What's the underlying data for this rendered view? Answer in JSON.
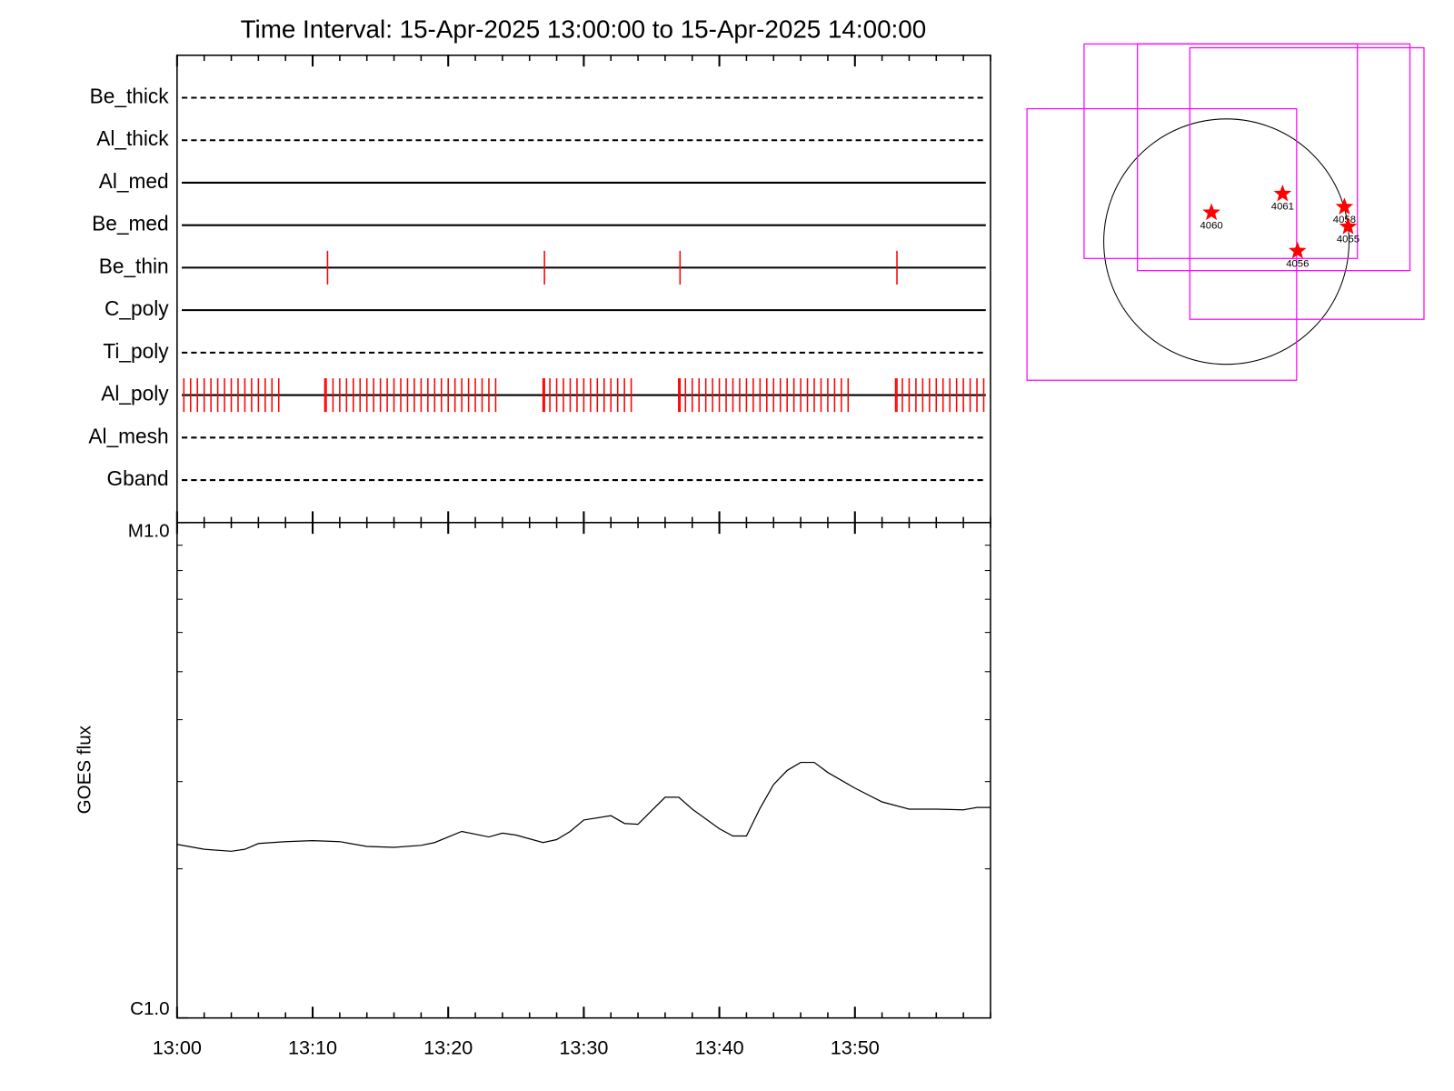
{
  "chart_data": [
    {
      "type": "timeline",
      "title": "Time Interval: 15-Apr-2025 13:00:00 to 15-Apr-2025 14:00:00",
      "xlim": [
        0,
        60
      ],
      "event_color": "#ff0000",
      "filters": [
        {
          "name": "Be_thick",
          "style": "dashed",
          "events": []
        },
        {
          "name": "Al_thick",
          "style": "dashed",
          "events": []
        },
        {
          "name": "Al_med",
          "style": "solid",
          "events": []
        },
        {
          "name": "Be_med",
          "style": "solid",
          "events": []
        },
        {
          "name": "Be_thin",
          "style": "solid",
          "events": [
            11.1,
            27.1,
            37.1,
            53.1
          ]
        },
        {
          "name": "C_poly",
          "style": "solid",
          "events": []
        },
        {
          "name": "Ti_poly",
          "style": "dashed",
          "events": []
        },
        {
          "name": "Al_poly",
          "style": "solid",
          "events": [
            0.5,
            1.0,
            1.5,
            2.0,
            2.5,
            3.0,
            3.5,
            4.0,
            4.5,
            5.0,
            5.5,
            6.0,
            6.5,
            7.0,
            7.5,
            10.9,
            11.0,
            11.5,
            12.0,
            12.5,
            13.0,
            13.5,
            14.0,
            14.5,
            15.0,
            15.5,
            16.0,
            16.5,
            17.0,
            17.5,
            18.0,
            18.5,
            19.0,
            19.5,
            20.0,
            20.5,
            21.0,
            21.5,
            22.0,
            22.5,
            23.0,
            23.5,
            27.0,
            27.1,
            27.5,
            28.0,
            28.5,
            29.0,
            29.5,
            30.0,
            30.5,
            31.0,
            31.5,
            32.0,
            32.5,
            33.0,
            33.5,
            37.0,
            37.1,
            37.5,
            38.0,
            38.5,
            39.0,
            39.5,
            40.0,
            40.5,
            41.0,
            41.5,
            42.0,
            42.5,
            43.0,
            43.5,
            44.0,
            44.5,
            45.0,
            45.5,
            46.0,
            46.5,
            47.0,
            47.5,
            48.0,
            48.5,
            49.0,
            49.5,
            53.0,
            53.1,
            53.5,
            54.0,
            54.5,
            55.0,
            55.5,
            56.0,
            56.5,
            57.0,
            57.5,
            58.0,
            58.5,
            59.0,
            59.5
          ]
        },
        {
          "name": "Al_mesh",
          "style": "dashed",
          "events": []
        },
        {
          "name": "Gband",
          "style": "dashed",
          "events": []
        }
      ]
    },
    {
      "type": "line",
      "y_label": "GOES flux",
      "log_y": true,
      "color": "#000000",
      "xlim": [
        0,
        60
      ],
      "xticks": [
        {
          "value": 0,
          "label": "13:00"
        },
        {
          "value": 10,
          "label": "13:10"
        },
        {
          "value": 20,
          "label": "13:20"
        },
        {
          "value": 30,
          "label": "13:30"
        },
        {
          "value": 40,
          "label": "13:40"
        },
        {
          "value": 50,
          "label": "13:50"
        }
      ],
      "ylim": [
        1e-06,
        1e-05
      ],
      "yticks": [
        {
          "value": 1e-06,
          "label": "C1.0"
        },
        {
          "value": 1e-05,
          "label": "M1.0"
        }
      ],
      "x": [
        0,
        2,
        4,
        5,
        6,
        8,
        10,
        12,
        14,
        16,
        18,
        19,
        21,
        23,
        24,
        25,
        27,
        28,
        29,
        30,
        32,
        33,
        34,
        35,
        36,
        37,
        38,
        40,
        41,
        42,
        43,
        44,
        45,
        46,
        47,
        48,
        50,
        52,
        54,
        56,
        58,
        59,
        60
      ],
      "values": [
        2.24e-06,
        2.19e-06,
        2.17e-06,
        2.19e-06,
        2.25e-06,
        2.27e-06,
        2.28e-06,
        2.27e-06,
        2.22e-06,
        2.21e-06,
        2.23e-06,
        2.26e-06,
        2.38e-06,
        2.32e-06,
        2.36e-06,
        2.34e-06,
        2.26e-06,
        2.29e-06,
        2.38e-06,
        2.51e-06,
        2.56e-06,
        2.47e-06,
        2.46e-06,
        2.62e-06,
        2.79e-06,
        2.79e-06,
        2.64e-06,
        2.41e-06,
        2.33e-06,
        2.33e-06,
        2.65e-06,
        2.96e-06,
        3.16e-06,
        3.28e-06,
        3.28e-06,
        3.13e-06,
        2.91e-06,
        2.73e-06,
        2.64e-06,
        2.64e-06,
        2.63e-06,
        2.66e-06,
        2.66e-06
      ]
    },
    {
      "type": "map",
      "disk_radius": 960,
      "box_color": "#ff00ff",
      "star_color": "#ff0000",
      "boxes": [
        [
          -1561,
          550,
          -1085,
          1040
        ],
        [
          -1114,
          1026,
          -132,
          1547
        ],
        [
          -696,
          1437,
          -227,
          1547
        ],
        [
          -286,
          1547,
          -608,
          1517
        ]
      ],
      "regions": [
        {
          "label": "4060",
          "x": -117,
          "y": 227
        },
        {
          "label": "4061",
          "x": 440,
          "y": 374
        },
        {
          "label": "4058",
          "x": 924,
          "y": 271
        },
        {
          "label": "4055",
          "x": 953,
          "y": 117
        },
        {
          "label": "4056",
          "x": 557,
          "y": -73
        }
      ]
    }
  ]
}
